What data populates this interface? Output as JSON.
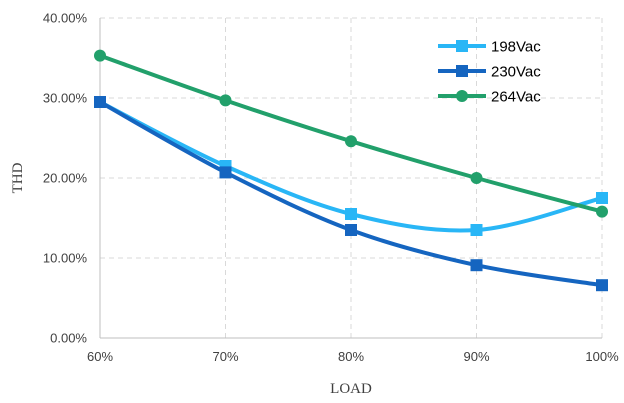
{
  "chart_data": {
    "type": "line",
    "x": [
      "60%",
      "70%",
      "80%",
      "90%",
      "100%"
    ],
    "series": [
      {
        "name": "198Vac",
        "values": [
          29.5,
          21.5,
          15.5,
          13.5,
          17.5
        ],
        "color": "#29b6f6",
        "marker": "square"
      },
      {
        "name": "230Vac",
        "values": [
          29.5,
          20.7,
          13.5,
          9.1,
          6.6
        ],
        "color": "#1565c0",
        "marker": "square"
      },
      {
        "name": "264Vac",
        "values": [
          35.3,
          29.7,
          24.6,
          20.0,
          15.8
        ],
        "color": "#22a06b",
        "marker": "circle"
      }
    ],
    "yticks": [
      "0.00%",
      "10.00%",
      "20.00%",
      "30.00%",
      "40.00%"
    ],
    "ylim": [
      0,
      40
    ],
    "xlabel": "LOAD",
    "ylabel": "THD",
    "grid": true,
    "legend_position": "top-right"
  }
}
